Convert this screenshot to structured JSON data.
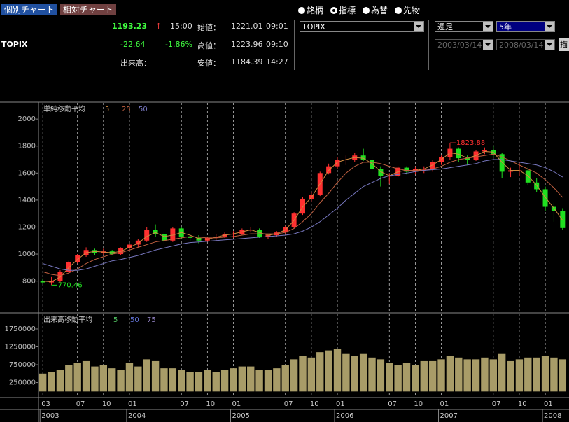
{
  "header": {
    "tabs": [
      "個別チャート",
      "相対チャート"
    ],
    "price": "1193.23",
    "arrow": "↑",
    "time": "15:00",
    "open_label": "始値：",
    "open": "1221.01",
    "open_time": "09:01",
    "name": "TOPIX",
    "change": "-22.64",
    "change_pct": "-1.86%",
    "high_label": "高値：",
    "high": "1223.96",
    "high_time": "09:10",
    "volume_label": "出来高：",
    "low_label": "安値：",
    "low": "1184.39",
    "low_time": "14:27"
  },
  "controls": {
    "radios": [
      "銘柄",
      "指標",
      "為替",
      "先物"
    ],
    "selected": 1,
    "index_select": "TOPIX",
    "period": "週足",
    "span": "5年",
    "from": "2003/03/14",
    "to": "2008/03/14",
    "draw_button": "描"
  },
  "chart_data": [
    {
      "type": "candlestick",
      "title": "単純移動平均",
      "up_color": "#ff3030",
      "down_color": "#20e020",
      "open": [
        800,
        790,
        800,
        870,
        940,
        990,
        1030,
        1010,
        1020,
        1000,
        1043,
        1070,
        1100,
        1180,
        1150,
        1100,
        1190,
        1130,
        1120,
        1100,
        1120,
        1130,
        1150,
        1150,
        1180,
        1180,
        1130,
        1140,
        1160,
        1200,
        1300,
        1410,
        1440,
        1600,
        1650,
        1700,
        1700,
        1730,
        1700,
        1630,
        1580,
        1580,
        1640,
        1610,
        1630,
        1630,
        1680,
        1720,
        1780,
        1710,
        1700,
        1760,
        1770,
        1740,
        1610,
        1620,
        1620,
        1530,
        1480,
        1350,
        1320
      ],
      "high": [
        820,
        830,
        880,
        950,
        1000,
        1050,
        1040,
        1040,
        1030,
        1050,
        1080,
        1110,
        1200,
        1220,
        1160,
        1200,
        1200,
        1150,
        1140,
        1130,
        1150,
        1160,
        1170,
        1190,
        1200,
        1190,
        1150,
        1170,
        1210,
        1310,
        1420,
        1460,
        1610,
        1670,
        1720,
        1730,
        1750,
        1780,
        1720,
        1650,
        1600,
        1650,
        1650,
        1650,
        1650,
        1700,
        1730,
        1823.88,
        1790,
        1730,
        1770,
        1790,
        1800,
        1750,
        1640,
        1680,
        1640,
        1560,
        1500,
        1380,
        1340
      ],
      "low": [
        780,
        770.46,
        790,
        860,
        930,
        980,
        990,
        990,
        990,
        990,
        1030,
        1050,
        1090,
        1130,
        1070,
        1090,
        1110,
        1100,
        1080,
        1090,
        1100,
        1120,
        1120,
        1140,
        1160,
        1120,
        1110,
        1130,
        1150,
        1190,
        1290,
        1390,
        1430,
        1590,
        1630,
        1660,
        1680,
        1690,
        1600,
        1500,
        1520,
        1570,
        1590,
        1590,
        1600,
        1610,
        1660,
        1700,
        1680,
        1660,
        1690,
        1740,
        1720,
        1560,
        1570,
        1580,
        1510,
        1460,
        1320,
        1240,
        1180
      ],
      "close": [
        790,
        800,
        870,
        940,
        990,
        1030,
        1010,
        1020,
        1000,
        1043,
        1070,
        1100,
        1180,
        1150,
        1100,
        1190,
        1130,
        1120,
        1100,
        1120,
        1130,
        1150,
        1150,
        1180,
        1180,
        1130,
        1140,
        1160,
        1200,
        1300,
        1410,
        1440,
        1600,
        1650,
        1700,
        1700,
        1730,
        1700,
        1630,
        1580,
        1580,
        1640,
        1610,
        1630,
        1630,
        1680,
        1720,
        1780,
        1710,
        1700,
        1760,
        1770,
        1740,
        1610,
        1620,
        1620,
        1530,
        1480,
        1350,
        1320,
        1193
      ],
      "series": [
        {
          "name": "5",
          "color": "#d08a40",
          "values": [
            800,
            795,
            830,
            900,
            960,
            1010,
            1020,
            1015,
            1010,
            1020,
            1050,
            1080,
            1130,
            1160,
            1130,
            1140,
            1160,
            1140,
            1115,
            1110,
            1125,
            1140,
            1150,
            1165,
            1180,
            1160,
            1140,
            1150,
            1180,
            1250,
            1350,
            1420,
            1520,
            1620,
            1680,
            1700,
            1715,
            1710,
            1670,
            1610,
            1580,
            1610,
            1620,
            1620,
            1630,
            1660,
            1700,
            1750,
            1740,
            1710,
            1730,
            1760,
            1755,
            1680,
            1620,
            1620,
            1580,
            1510,
            1420,
            1340,
            1250
          ]
        },
        {
          "name": "25",
          "color": "#c06040",
          "values": [
            870,
            850,
            840,
            860,
            890,
            930,
            960,
            980,
            1000,
            1010,
            1030,
            1050,
            1070,
            1090,
            1100,
            1110,
            1120,
            1130,
            1125,
            1120,
            1120,
            1125,
            1130,
            1140,
            1150,
            1150,
            1150,
            1150,
            1160,
            1190,
            1240,
            1300,
            1380,
            1450,
            1530,
            1600,
            1650,
            1680,
            1680,
            1670,
            1650,
            1630,
            1620,
            1620,
            1620,
            1630,
            1650,
            1680,
            1700,
            1710,
            1720,
            1730,
            1740,
            1720,
            1690,
            1660,
            1630,
            1600,
            1550,
            1490,
            1420
          ]
        },
        {
          "name": "50",
          "color": "#7878c0",
          "values": [
            930,
            910,
            890,
            880,
            880,
            890,
            910,
            930,
            950,
            960,
            975,
            990,
            1010,
            1030,
            1045,
            1060,
            1075,
            1085,
            1090,
            1095,
            1100,
            1105,
            1110,
            1115,
            1120,
            1125,
            1130,
            1135,
            1140,
            1150,
            1170,
            1200,
            1240,
            1290,
            1340,
            1400,
            1450,
            1500,
            1530,
            1560,
            1580,
            1590,
            1600,
            1610,
            1620,
            1625,
            1630,
            1640,
            1650,
            1660,
            1670,
            1690,
            1700,
            1700,
            1690,
            1680,
            1670,
            1660,
            1640,
            1610,
            1570
          ]
        }
      ],
      "hline": 1200,
      "ylim": [
        570,
        2120
      ],
      "yticks": [
        800,
        1000,
        1200,
        1400,
        1600,
        1800,
        2000
      ],
      "xticks": [
        {
          "value": 0,
          "label": "03"
        },
        {
          "value": 4,
          "label": "07"
        },
        {
          "value": 7,
          "label": "10"
        },
        {
          "value": 10,
          "label": "01"
        },
        {
          "value": 16,
          "label": "07"
        },
        {
          "value": 19,
          "label": "10"
        },
        {
          "value": 22,
          "label": "01"
        },
        {
          "value": 28,
          "label": "07"
        },
        {
          "value": 31,
          "label": "10"
        },
        {
          "value": 34,
          "label": "01"
        },
        {
          "value": 40,
          "label": "07"
        },
        {
          "value": 43,
          "label": "10"
        },
        {
          "value": 46,
          "label": "01"
        },
        {
          "value": 52,
          "label": "07"
        },
        {
          "value": 55,
          "label": "10"
        },
        {
          "value": 58,
          "label": "01"
        }
      ],
      "year_ticks": [
        {
          "value": 0,
          "label": "2003"
        },
        {
          "value": 10,
          "label": "2004"
        },
        {
          "value": 22,
          "label": "2005"
        },
        {
          "value": 34,
          "label": "2006"
        },
        {
          "value": 46,
          "label": "2007"
        },
        {
          "value": 58,
          "label": "2008"
        }
      ],
      "grid": true
    },
    {
      "type": "bar",
      "title": "出来高移動平均",
      "color": "#a89c68",
      "legend": [
        {
          "name": "5",
          "color": "#50c060"
        },
        {
          "name": "50",
          "color": "#6070d0"
        },
        {
          "name": "75",
          "color": "#9080c0"
        }
      ],
      "values": [
        500000,
        550000,
        600000,
        750000,
        800000,
        850000,
        700000,
        750000,
        650000,
        600000,
        800000,
        700000,
        900000,
        850000,
        650000,
        650000,
        600000,
        550000,
        550000,
        600000,
        550000,
        600000,
        650000,
        700000,
        700000,
        600000,
        600000,
        650000,
        750000,
        900000,
        1000000,
        950000,
        1100000,
        1150000,
        1200000,
        1050000,
        1000000,
        1050000,
        950000,
        900000,
        800000,
        750000,
        800000,
        750000,
        850000,
        850000,
        900000,
        1000000,
        950000,
        900000,
        900000,
        950000,
        900000,
        1050000,
        850000,
        900000,
        950000,
        950000,
        1000000,
        950000,
        900000
      ],
      "ylim": [
        -150000,
        2180000
      ],
      "yticks": [
        250000,
        750000,
        1250000,
        1750000
      ],
      "grid": true
    }
  ]
}
